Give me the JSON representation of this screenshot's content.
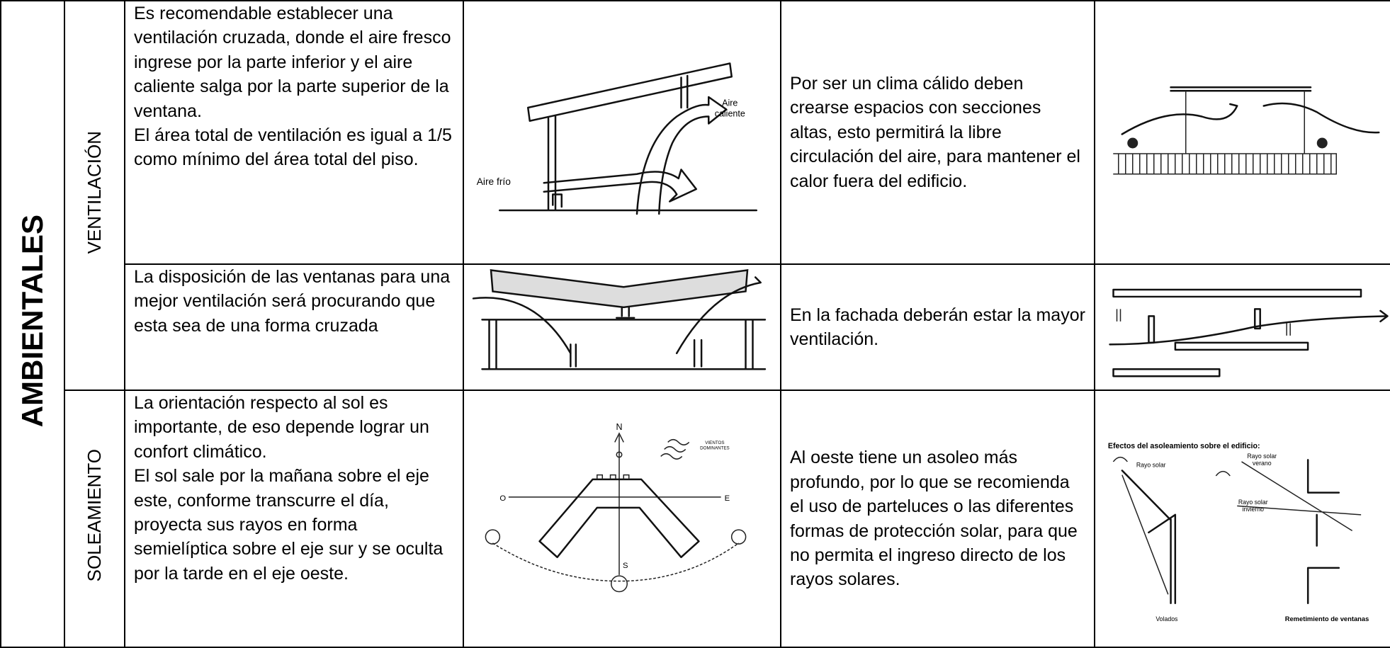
{
  "table": {
    "group_label": "AMBIENTALES",
    "sections": [
      {
        "label": "VENTILACIÓN",
        "rows": [
          {
            "description": [
              "Es recomendable establecer una ventilación cruzada, donde el aire fresco ingrese por la parte inferior y el aire caliente salga por la parte superior de la ventana.",
              "El área total de ventilación es igual a 1/5 como mínimo del área total del piso."
            ],
            "recommendation": [
              "Por ser un clima cálido deben crearse espacios con secciones altas, esto permitirá la libre circulación del aire, para mantener el calor fuera del edificio."
            ]
          },
          {
            "description": [
              "La disposición de las ventanas para una mejor ventilación será procurando que esta sea de una forma cruzada"
            ],
            "recommendation": [
              "En la fachada deberán estar la mayor ventilación."
            ]
          }
        ]
      },
      {
        "label": "SOLEAMIENTO",
        "rows": [
          {
            "description": [
              "La orientación respecto al sol es importante, de eso depende lograr un confort climático.",
              "El sol sale por la mañana sobre el eje este, conforme transcurre el día, proyecta sus rayos en forma semielíptica sobre el eje sur y se oculta por la tarde en el eje oeste."
            ],
            "recommendation": [
              "Al oeste tiene un asoleo más profundo, por lo que se recomienda el uso de parteluces o las diferentes formas de protección solar, para que no permita el ingreso directo de los rayos solares."
            ]
          }
        ]
      }
    ]
  },
  "figures": {
    "cross_ventilation": {
      "cold_air": "Aire frío",
      "hot_air": [
        "Aire",
        "caliente"
      ]
    },
    "orientation": {
      "north": "N",
      "south": "S",
      "east": "E",
      "west": "O",
      "winds": [
        "VIENTOS",
        "DOMINANTES"
      ]
    },
    "sun_effects": {
      "title": "Efectos del asoleamiento sobre el edificio:",
      "ray": "Rayo solar",
      "summer_ray": [
        "Rayo solar",
        "verano"
      ],
      "winter_ray": [
        "Rayo solar",
        "invierno"
      ],
      "overhangs": "Volados",
      "recess": "Remetimiento de ventanas"
    }
  }
}
